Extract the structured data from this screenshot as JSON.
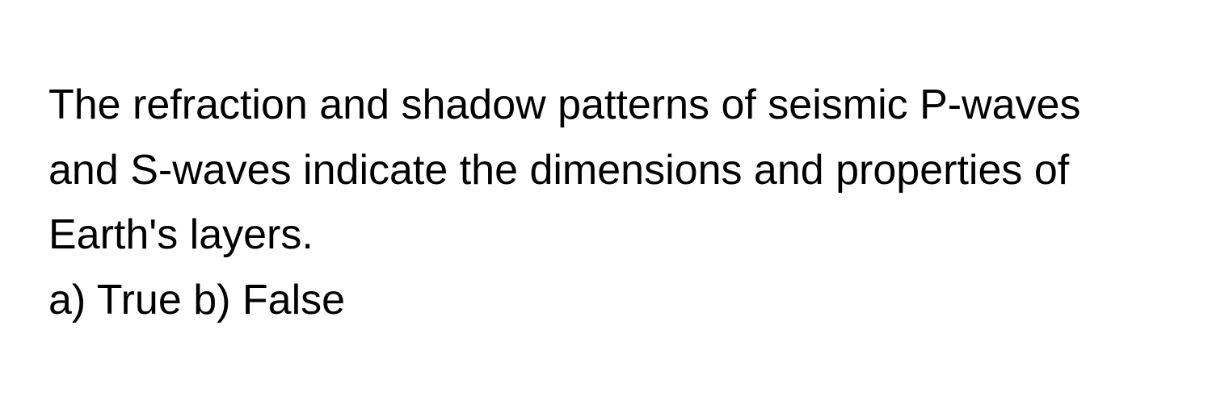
{
  "question": {
    "text": "The refraction and shadow patterns of seismic P-waves and S-waves indicate the dimensions and properties of Earth's layers.",
    "options": [
      {
        "label": "a)",
        "value": "True"
      },
      {
        "label": "b)",
        "value": "False"
      }
    ]
  },
  "style": {
    "background_color": "#ffffff",
    "text_color": "#000000",
    "font_size_pt": 39,
    "font_weight": 400,
    "line_height": 1.55
  }
}
